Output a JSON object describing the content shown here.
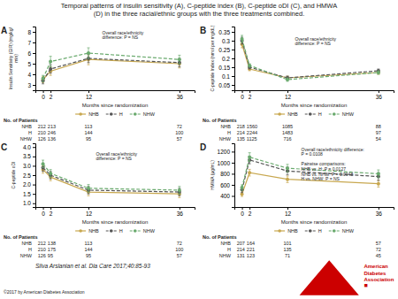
{
  "title": "Temporal patterns of insulin sensitivity (A), C-peptide index (B), C-peptide oDI (C), and HMWA\n(D) in the three racial/ethnic groups with the three treatments combined.",
  "annotations": [
    "Silva Arslanian et al. Dia Care 2017;40:85-93",
    "©2017 by American Diabetes Association",
    "American",
    "Diabetes",
    "Association",
    "■"
  ],
  "chart_data": [
    {
      "type": "line",
      "title": "A",
      "x_label": "Months since randomization",
      "y_label": "Insulin Sensitivity (GIR) (mg/kg/\nmin)",
      "annotations": [
        "Overall race/ethnicity\ndifference: P = NS"
      ],
      "x": [
        0,
        2,
        12,
        36
      ],
      "xlim": [
        -2,
        40
      ],
      "xticks": [
        0,
        2,
        12,
        36
      ],
      "ylim": [
        2.5,
        8.5
      ],
      "yticks": [
        3,
        4,
        5,
        6,
        7,
        8
      ],
      "grid": false,
      "legend": "bottom",
      "series": [
        {
          "name": "NHB",
          "color": "#c8a850",
          "line_style": "solid",
          "marker": "circle",
          "values": [
            3.5,
            4.3,
            5.4,
            5.0
          ],
          "errors": [
            0.3,
            0.4,
            0.5,
            0.4
          ]
        },
        {
          "name": "H",
          "color": "#555555",
          "line_style": "dashed",
          "marker": "circle",
          "values": [
            3.4,
            4.5,
            5.5,
            5.1
          ],
          "errors": [
            0.3,
            0.4,
            0.4,
            0.4
          ]
        },
        {
          "name": "NHW",
          "color": "#6aaa6e",
          "line_style": "dashed",
          "marker": "circle",
          "values": [
            3.6,
            5.2,
            6.0,
            5.4
          ],
          "errors": [
            0.3,
            0.5,
            0.5,
            0.4
          ]
        }
      ],
      "table": {
        "title": "No. of Patients",
        "rows": [
          {
            "name": "NHB",
            "values": [
              212,
              213,
              113,
              72
            ]
          },
          {
            "name": "H",
            "values": [
              210,
              246,
              144,
              100
            ]
          },
          {
            "name": "NHW",
            "values": [
              126,
              136,
              95,
              57
            ]
          }
        ]
      }
    },
    {
      "type": "line",
      "title": "B",
      "x_label": "Months since randomization",
      "y_label": "C-peptide Index (nmol per mg/dL)",
      "annotations": [
        "Overall race/ethnicity\ndifference: P = NS"
      ],
      "x": [
        0,
        2,
        12,
        36
      ],
      "xlim": [
        -2,
        40
      ],
      "xticks": [
        0,
        2,
        12,
        36
      ],
      "ylim": [
        0.02,
        0.38
      ],
      "yticks": [
        0.05,
        0.1,
        0.15,
        0.2,
        0.25,
        0.3,
        0.35
      ],
      "grid": false,
      "legend": "bottom",
      "series": [
        {
          "name": "NHB",
          "color": "#c8a850",
          "line_style": "solid",
          "marker": "circle",
          "values": [
            0.28,
            0.14,
            0.09,
            0.12
          ],
          "errors": [
            0.02,
            0.01,
            0.01,
            0.01
          ]
        },
        {
          "name": "H",
          "color": "#555555",
          "line_style": "dashed",
          "marker": "circle",
          "values": [
            0.3,
            0.15,
            0.09,
            0.13
          ],
          "errors": [
            0.02,
            0.01,
            0.01,
            0.01
          ]
        },
        {
          "name": "NHW",
          "color": "#6aaa6e",
          "line_style": "dashed",
          "marker": "circle",
          "values": [
            0.31,
            0.16,
            0.08,
            0.12
          ],
          "errors": [
            0.02,
            0.01,
            0.01,
            0.01
          ]
        }
      ],
      "table": {
        "title": "No. of Patients",
        "rows": [
          {
            "name": "NHB",
            "values": [
              218,
              1560,
              1085,
              88
            ]
          },
          {
            "name": "H",
            "values": [
              214,
              2244,
              1483,
              97
            ]
          },
          {
            "name": "NHW",
            "values": [
              135,
              1125,
              716,
              54
            ]
          }
        ]
      }
    },
    {
      "type": "line",
      "title": "C",
      "x_label": "Months since randomization",
      "y_label": "C-peptide oDI",
      "annotations": [
        "Overall race/ethnicity\ndifference: P = NS"
      ],
      "x": [
        0,
        2,
        12,
        36
      ],
      "xlim": [
        -2,
        40
      ],
      "xticks": [
        0,
        2,
        12,
        36
      ],
      "ylim": [
        0.8,
        4.2
      ],
      "yticks": [
        {
          "value": 1.0,
          "label": "1.0"
        },
        1.5,
        {
          "value": 2.0,
          "label": "2.0"
        },
        2.5,
        {
          "value": 3.0,
          "label": "3.0"
        },
        3.5,
        {
          "value": 4.0,
          "label": "4.0"
        }
      ],
      "grid": false,
      "legend": "bottom",
      "series": [
        {
          "name": "NHB",
          "color": "#c8a850",
          "line_style": "solid",
          "marker": "circle",
          "values": [
            2.8,
            2.4,
            1.6,
            1.5
          ],
          "errors": [
            0.2,
            0.2,
            0.2,
            0.2
          ]
        },
        {
          "name": "H",
          "color": "#555555",
          "line_style": "dashed",
          "marker": "circle",
          "values": [
            2.9,
            2.5,
            1.7,
            1.6
          ],
          "errors": [
            0.2,
            0.2,
            0.2,
            0.2
          ]
        },
        {
          "name": "NHW",
          "color": "#6aaa6e",
          "line_style": "dashed",
          "marker": "circle",
          "values": [
            3.1,
            2.6,
            1.8,
            1.7
          ],
          "errors": [
            0.2,
            0.2,
            0.2,
            0.2
          ]
        }
      ],
      "table": {
        "title": "No. of Patients",
        "rows": [
          {
            "name": "NHB",
            "values": [
              212,
              138,
              113,
              72
            ]
          },
          {
            "name": "H",
            "values": [
              210,
              175,
              144,
              100
            ]
          },
          {
            "name": "NHW",
            "values": [
              126,
              95,
              95,
              57
            ]
          }
        ]
      }
    },
    {
      "type": "line",
      "title": "D",
      "x_label": "Months since randomization",
      "y_label": "HMWA (μg/mL)",
      "annotations": [
        "Overall race/ethnicity difference:\nP = 0.0108\n\nPairwise comparisons:\nNHB vs. H: P = 0.0127\nNHB vs. NHW: P = 0.0048\nH vs. NHW: P = NS"
      ],
      "x": [
        0,
        2,
        12,
        36
      ],
      "xlim": [
        -2,
        40
      ],
      "xticks": [
        0,
        2,
        12,
        36
      ],
      "ylim": [
        200,
        1350
      ],
      "yticks": [
        400,
        600,
        800,
        1000,
        1200
      ],
      "grid": false,
      "legend": "bottom",
      "series": [
        {
          "name": "NHB",
          "color": "#c8a850",
          "line_style": "solid",
          "marker": "circle",
          "values": [
            430,
            820,
            700,
            620
          ],
          "errors": [
            40,
            60,
            60,
            60
          ]
        },
        {
          "name": "H",
          "color": "#555555",
          "line_style": "dashed",
          "marker": "circle",
          "values": [
            510,
            1050,
            850,
            750
          ],
          "errors": [
            50,
            70,
            70,
            70
          ]
        },
        {
          "name": "NHW",
          "color": "#6aaa6e",
          "line_style": "dashed",
          "marker": "circle",
          "values": [
            550,
            1100,
            900,
            800
          ],
          "errors": [
            50,
            80,
            70,
            70
          ]
        }
      ],
      "table": {
        "title": "No. of Patients",
        "rows": [
          {
            "name": "NHB",
            "values": [
              207,
              164,
              101,
              57
            ]
          },
          {
            "name": "H",
            "values": [
              214,
              221,
              135,
              72
            ]
          },
          {
            "name": "NHW",
            "values": [
              131,
              123,
              71,
              45
            ]
          }
        ]
      }
    }
  ]
}
